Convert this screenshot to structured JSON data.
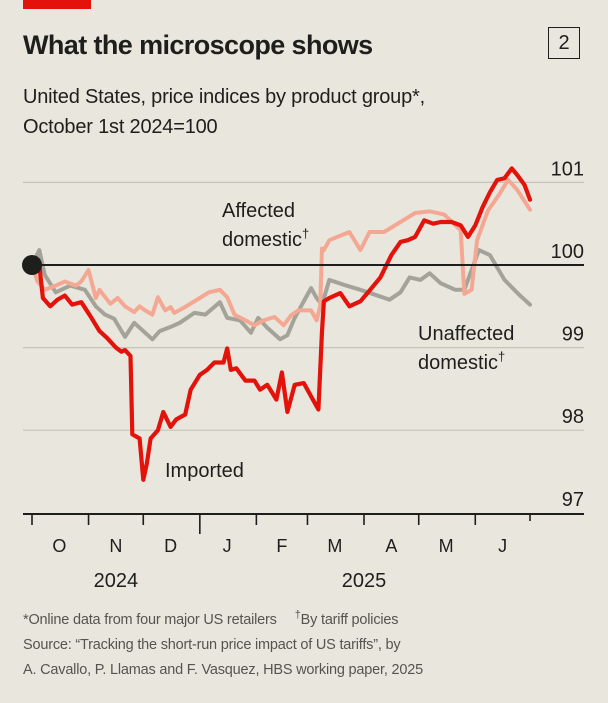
{
  "header": {
    "title": "What the microscope shows",
    "chart_number": "2",
    "subtitle_line1": "United States, price indices by product group*,",
    "subtitle_line2": "October 1st 2024=100"
  },
  "footnotes": {
    "note1": "*Online data from four major US retailers",
    "note2_mark": "†",
    "note2": "By tariff policies",
    "source_line1": "Source: “Tracking the short-run price impact of US tariffs”, by",
    "source_line2": "A. Cavallo, P. Llamas and F. Vasquez, HBS working paper, 2025"
  },
  "colors": {
    "background": "#e9e7dd",
    "brand_red": "#e3120b",
    "imported": "#e3120b",
    "affected_domestic": "#f4a893",
    "unaffected_domestic": "#a3a39a",
    "baseline": "#1e1e1c",
    "gridline": "#c4c3ba"
  },
  "chart_data": {
    "type": "line",
    "title": "What the microscope shows",
    "subtitle": "United States, price indices by product group*, October 1st 2024=100",
    "xlabel": "",
    "ylabel": "",
    "x_unit": "days since October 1st 2024",
    "xlim": [
      0,
      300
    ],
    "ylim": [
      97,
      101
    ],
    "yticks": [
      97,
      98,
      99,
      100,
      101
    ],
    "baseline": 100,
    "grid": true,
    "y_axis_side": "right",
    "x_month_ticks": [
      0,
      31,
      61,
      92,
      123,
      151,
      182,
      212,
      243,
      273
    ],
    "x_month_labels": [
      {
        "label": "O",
        "day": 15
      },
      {
        "label": "N",
        "day": 46
      },
      {
        "label": "D",
        "day": 76
      },
      {
        "label": "J",
        "day": 107
      },
      {
        "label": "F",
        "day": 137
      },
      {
        "label": "M",
        "day": 166
      },
      {
        "label": "A",
        "day": 197
      },
      {
        "label": "M",
        "day": 227
      },
      {
        "label": "J",
        "day": 258
      }
    ],
    "x_year_labels": [
      {
        "label": "2024",
        "day": 46
      },
      {
        "label": "2025",
        "day": 182
      }
    ],
    "year_divider_day": 92,
    "start_marker": {
      "day": 0,
      "value": 100
    },
    "series": [
      {
        "name": "Imported",
        "label": "Imported",
        "color": "#e3120b",
        "points": [
          [
            0,
            100.0
          ],
          [
            4,
            100.0
          ],
          [
            6,
            99.6
          ],
          [
            10,
            99.5
          ],
          [
            14,
            99.58
          ],
          [
            18,
            99.63
          ],
          [
            22,
            99.52
          ],
          [
            27,
            99.55
          ],
          [
            32,
            99.38
          ],
          [
            37,
            99.2
          ],
          [
            41,
            99.12
          ],
          [
            46,
            99.0
          ],
          [
            49,
            98.95
          ],
          [
            51,
            98.97
          ],
          [
            54,
            98.9
          ],
          [
            55,
            97.95
          ],
          [
            59,
            97.9
          ],
          [
            61,
            97.4
          ],
          [
            63,
            97.6
          ],
          [
            65,
            97.9
          ],
          [
            69,
            98.0
          ],
          [
            72,
            98.22
          ],
          [
            76,
            98.04
          ],
          [
            79,
            98.13
          ],
          [
            84,
            98.19
          ],
          [
            87,
            98.49
          ],
          [
            92,
            98.67
          ],
          [
            96,
            98.73
          ],
          [
            100,
            98.82
          ],
          [
            105,
            98.82
          ],
          [
            107,
            98.99
          ],
          [
            109,
            98.73
          ],
          [
            112,
            98.75
          ],
          [
            117,
            98.6
          ],
          [
            122,
            98.6
          ],
          [
            125,
            98.49
          ],
          [
            129,
            98.55
          ],
          [
            134,
            98.37
          ],
          [
            137,
            98.7
          ],
          [
            140,
            98.22
          ],
          [
            144,
            98.55
          ],
          [
            149,
            98.57
          ],
          [
            154,
            98.37
          ],
          [
            157,
            98.25
          ],
          [
            159,
            99.2
          ],
          [
            160,
            99.56
          ],
          [
            163,
            99.6
          ],
          [
            169,
            99.66
          ],
          [
            174,
            99.5
          ],
          [
            180,
            99.56
          ],
          [
            185,
            99.69
          ],
          [
            191,
            99.85
          ],
          [
            197,
            100.12
          ],
          [
            202,
            100.28
          ],
          [
            206,
            100.3
          ],
          [
            210,
            100.34
          ],
          [
            215,
            100.54
          ],
          [
            220,
            100.5
          ],
          [
            224,
            100.52
          ],
          [
            230,
            100.52
          ],
          [
            235,
            100.48
          ],
          [
            239,
            100.34
          ],
          [
            243,
            100.48
          ],
          [
            247,
            100.7
          ],
          [
            251,
            100.88
          ],
          [
            255,
            101.03
          ],
          [
            259,
            101.05
          ],
          [
            263,
            101.17
          ],
          [
            266,
            101.09
          ],
          [
            270,
            100.97
          ],
          [
            273,
            100.79
          ]
        ]
      },
      {
        "name": "Affected domestic",
        "label": "Affected domestic†",
        "color": "#f4a893",
        "points": [
          [
            0,
            100.0
          ],
          [
            3,
            99.8
          ],
          [
            7,
            99.7
          ],
          [
            13,
            99.75
          ],
          [
            18,
            99.8
          ],
          [
            24,
            99.75
          ],
          [
            27,
            99.8
          ],
          [
            31,
            99.94
          ],
          [
            35,
            99.6
          ],
          [
            37,
            99.7
          ],
          [
            43,
            99.53
          ],
          [
            47,
            99.6
          ],
          [
            51,
            99.5
          ],
          [
            56,
            99.43
          ],
          [
            59,
            99.5
          ],
          [
            62,
            99.45
          ],
          [
            66,
            99.4
          ],
          [
            69,
            99.61
          ],
          [
            73,
            99.45
          ],
          [
            76,
            99.49
          ],
          [
            78,
            99.42
          ],
          [
            83,
            99.48
          ],
          [
            92,
            99.6
          ],
          [
            97,
            99.67
          ],
          [
            103,
            99.7
          ],
          [
            107,
            99.61
          ],
          [
            111,
            99.4
          ],
          [
            117,
            99.33
          ],
          [
            122,
            99.27
          ],
          [
            127,
            99.33
          ],
          [
            133,
            99.37
          ],
          [
            138,
            99.27
          ],
          [
            142,
            99.39
          ],
          [
            146,
            99.45
          ],
          [
            153,
            99.45
          ],
          [
            156,
            99.33
          ],
          [
            158,
            99.5
          ],
          [
            159,
            100.2
          ],
          [
            160,
            100.18
          ],
          [
            163,
            100.3
          ],
          [
            174,
            100.4
          ],
          [
            180,
            100.18
          ],
          [
            185,
            100.4
          ],
          [
            193,
            100.4
          ],
          [
            202,
            100.52
          ],
          [
            210,
            100.63
          ],
          [
            218,
            100.65
          ],
          [
            226,
            100.61
          ],
          [
            235,
            100.42
          ],
          [
            237,
            99.65
          ],
          [
            241,
            99.7
          ],
          [
            244,
            100.3
          ],
          [
            250,
            100.66
          ],
          [
            256,
            100.85
          ],
          [
            261,
            101.03
          ],
          [
            266,
            100.91
          ],
          [
            273,
            100.67
          ]
        ]
      },
      {
        "name": "Unaffected domestic",
        "label": "Unaffected domestic†",
        "color": "#a3a39a",
        "points": [
          [
            0,
            100.0
          ],
          [
            4,
            100.18
          ],
          [
            7,
            99.88
          ],
          [
            13,
            99.67
          ],
          [
            21,
            99.75
          ],
          [
            29,
            99.7
          ],
          [
            35,
            99.5
          ],
          [
            40,
            99.4
          ],
          [
            45,
            99.35
          ],
          [
            51,
            99.13
          ],
          [
            56,
            99.3
          ],
          [
            62,
            99.18
          ],
          [
            66,
            99.1
          ],
          [
            70,
            99.2
          ],
          [
            76,
            99.25
          ],
          [
            81,
            99.3
          ],
          [
            89,
            99.42
          ],
          [
            95,
            99.4
          ],
          [
            103,
            99.55
          ],
          [
            107,
            99.36
          ],
          [
            114,
            99.33
          ],
          [
            120,
            99.18
          ],
          [
            124,
            99.36
          ],
          [
            129,
            99.24
          ],
          [
            136,
            99.1
          ],
          [
            140,
            99.15
          ],
          [
            144,
            99.36
          ],
          [
            150,
            99.6
          ],
          [
            153,
            99.72
          ],
          [
            156,
            99.6
          ],
          [
            159,
            99.52
          ],
          [
            163,
            99.82
          ],
          [
            171,
            99.76
          ],
          [
            180,
            99.7
          ],
          [
            188,
            99.64
          ],
          [
            196,
            99.58
          ],
          [
            202,
            99.67
          ],
          [
            207,
            99.85
          ],
          [
            213,
            99.82
          ],
          [
            218,
            99.9
          ],
          [
            224,
            99.78
          ],
          [
            232,
            99.7
          ],
          [
            237,
            99.7
          ],
          [
            245,
            100.18
          ],
          [
            251,
            100.12
          ],
          [
            259,
            99.82
          ],
          [
            267,
            99.64
          ],
          [
            273,
            99.52
          ]
        ]
      }
    ],
    "annotations": [
      {
        "text": "Affected",
        "text2": "domestic",
        "mark": "†",
        "series": "Affected domestic"
      },
      {
        "text": "Unaffected",
        "text2": "domestic",
        "mark": "†",
        "series": "Unaffected domestic"
      },
      {
        "text": "Imported",
        "series": "Imported"
      }
    ]
  }
}
